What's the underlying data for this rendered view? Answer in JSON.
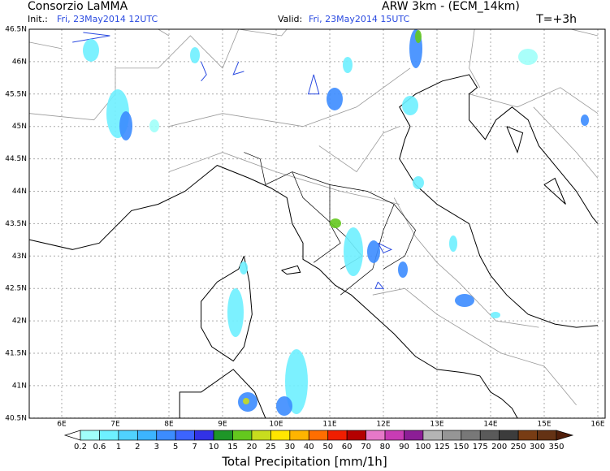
{
  "header": {
    "title": "Consorzio LaMMA",
    "model": "ARW 3km - (ECM_14km)",
    "init_label": "Init.:",
    "init_time": "Fri, 23May2014 12UTC",
    "valid_label": "Valid:",
    "valid_time": "Fri, 23May2014 15UTC",
    "lead_time": "T=+3h"
  },
  "map": {
    "lat_labels": [
      "46.5N",
      "46N",
      "45.5N",
      "45N",
      "44.5N",
      "44N",
      "43.5N",
      "43N",
      "42.5N",
      "42N",
      "41.5N",
      "41N",
      "40.5N"
    ],
    "lon_labels": [
      "6E",
      "7E",
      "8E",
      "9E",
      "10E",
      "11E",
      "12E",
      "13E",
      "14E",
      "15E",
      "16E"
    ]
  },
  "colorbar": {
    "title": "Total Precipitation [mm/1h]",
    "labels": [
      "0.2",
      "0.6",
      "1",
      "2",
      "3",
      "5",
      "7",
      "10",
      "15",
      "20",
      "25",
      "30",
      "40",
      "50",
      "60",
      "70",
      "80",
      "90",
      "100",
      "125",
      "150",
      "175",
      "200",
      "250",
      "300",
      "350"
    ],
    "colors": [
      "#ffffff",
      "#a0fffa",
      "#6ef0ff",
      "#50d2ff",
      "#3cb4ff",
      "#3c8cff",
      "#3c64ff",
      "#3232e6",
      "#1e9628",
      "#64c81e",
      "#c8dc1e",
      "#ffe600",
      "#ffb400",
      "#ff6e00",
      "#f01e00",
      "#b40000",
      "#e678c8",
      "#c83cb4",
      "#8c1e96",
      "#b4b4b4",
      "#969696",
      "#787878",
      "#5a5a5a",
      "#3c3c3c",
      "#783c14",
      "#643214",
      "#501e0a"
    ]
  }
}
